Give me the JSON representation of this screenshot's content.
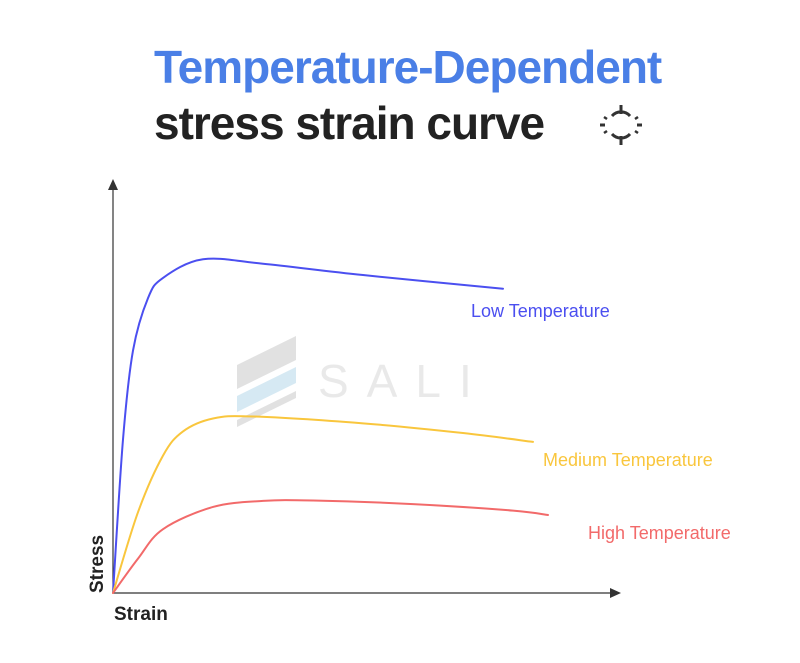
{
  "header": {
    "title_line1": "Temperature-Dependent",
    "title_line2": "stress strain curve"
  },
  "watermark": {
    "text": "SALI"
  },
  "chart_data": {
    "type": "line",
    "xlabel": "Strain",
    "ylabel": "Stress",
    "xlim": [
      0,
      1
    ],
    "ylim": [
      0,
      1
    ],
    "grid": false,
    "ticks": false,
    "legend": "inline labels at curve ends",
    "series": [
      {
        "name": "Low Temperature",
        "color": "#4b4ff0",
        "points": [
          [
            0,
            0
          ],
          [
            0.02,
            0.38
          ],
          [
            0.04,
            0.6
          ],
          [
            0.07,
            0.73
          ],
          [
            0.1,
            0.78
          ],
          [
            0.18,
            0.826
          ],
          [
            0.3,
            0.815
          ],
          [
            0.5,
            0.787
          ],
          [
            0.78,
            0.753
          ]
        ]
      },
      {
        "name": "Medium Temperature",
        "color": "#f9c63d",
        "points": [
          [
            0,
            0
          ],
          [
            0.05,
            0.2
          ],
          [
            0.1,
            0.34
          ],
          [
            0.14,
            0.4
          ],
          [
            0.2,
            0.432
          ],
          [
            0.28,
            0.437
          ],
          [
            0.5,
            0.42
          ],
          [
            0.7,
            0.396
          ],
          [
            0.84,
            0.374
          ]
        ]
      },
      {
        "name": "High Temperature",
        "color": "#f26a6a",
        "points": [
          [
            0,
            0
          ],
          [
            0.05,
            0.085
          ],
          [
            0.1,
            0.158
          ],
          [
            0.2,
            0.213
          ],
          [
            0.3,
            0.228
          ],
          [
            0.4,
            0.229
          ],
          [
            0.6,
            0.22
          ],
          [
            0.8,
            0.204
          ],
          [
            0.87,
            0.193
          ]
        ]
      }
    ]
  }
}
